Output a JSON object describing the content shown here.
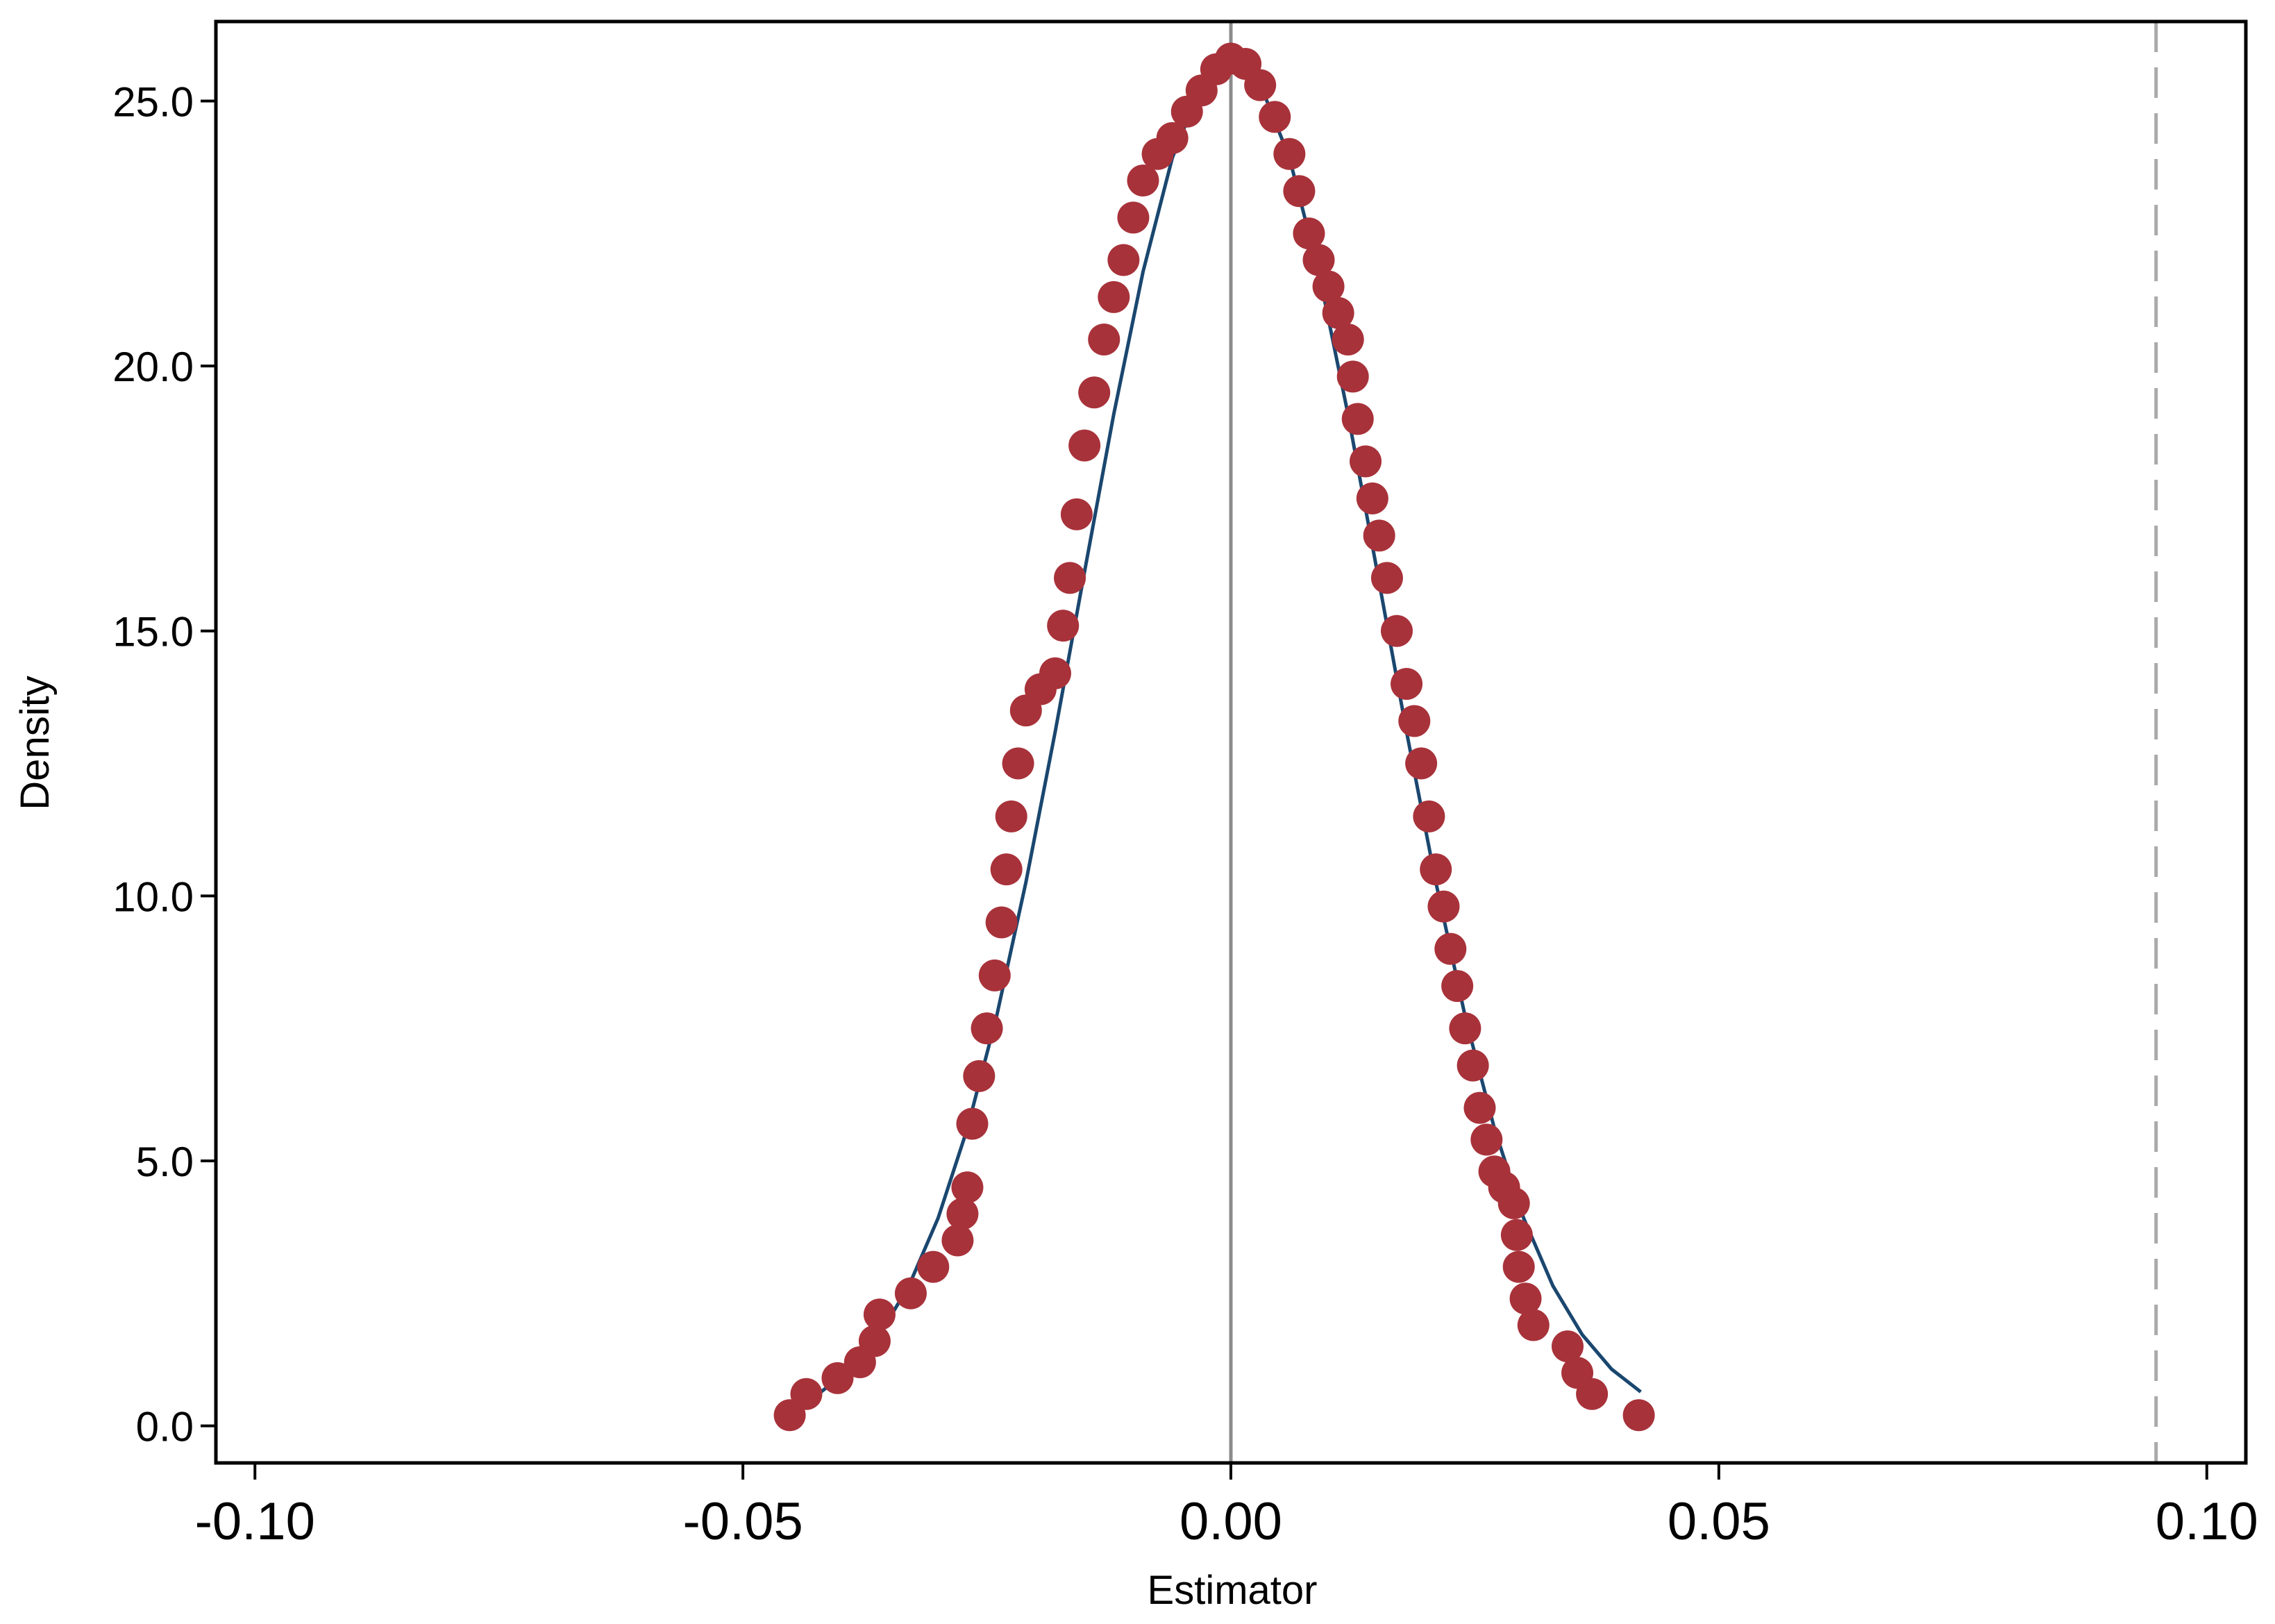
{
  "chart_data": {
    "type": "scatter",
    "x_label": "Estimator",
    "y_label": "Density",
    "xlim": [
      -0.104,
      0.104
    ],
    "ylim": [
      -0.7,
      26.5
    ],
    "xticks": [
      {
        "value": -0.1,
        "label": "-0.10"
      },
      {
        "value": -0.05,
        "label": "-0.05"
      },
      {
        "value": 0,
        "label": "0.00"
      },
      {
        "value": 0.05,
        "label": "0.05"
      },
      {
        "value": 0.1,
        "label": "0.10"
      }
    ],
    "yticks": [
      {
        "value": 0,
        "label": "0.0"
      },
      {
        "value": 5,
        "label": "5.0"
      },
      {
        "value": 10,
        "label": "10.0"
      },
      {
        "value": 15,
        "label": "15.0"
      },
      {
        "value": 20,
        "label": "20.0"
      },
      {
        "value": 25,
        "label": "25.0"
      }
    ],
    "reference_lines": [
      {
        "x": 0,
        "color": "#8c8c8c",
        "dashed": false
      },
      {
        "x": 0.0948,
        "color": "#aaaaaa",
        "dashed": true
      }
    ],
    "series": [
      {
        "type": "line",
        "color": "#1a476f",
        "x": [
          -0.045,
          -0.042,
          -0.039,
          -0.036,
          -0.033,
          -0.03,
          -0.027,
          -0.024,
          -0.021,
          -0.018,
          -0.015,
          -0.012,
          -0.009,
          -0.006,
          -0.003,
          0,
          0.003,
          0.006,
          0.009,
          0.012,
          0.015,
          0.018,
          0.021,
          0.024,
          0.027,
          0.03,
          0.033,
          0.036,
          0.039,
          0.042
        ],
        "values": [
          0.37,
          0.64,
          1.07,
          1.72,
          2.64,
          3.92,
          5.61,
          7.73,
          10.26,
          13.1,
          16.11,
          19.09,
          21.78,
          23.93,
          25.32,
          25.8,
          25.32,
          23.93,
          21.78,
          19.09,
          16.11,
          13.1,
          10.26,
          7.73,
          5.61,
          3.92,
          2.64,
          1.72,
          1.07,
          0.64
        ]
      },
      {
        "type": "scatter",
        "color": "#a8323a",
        "x": [
          -0.0452,
          -0.0435,
          -0.0403,
          -0.038,
          -0.0365,
          -0.036,
          -0.0328,
          -0.0305,
          -0.028,
          -0.0275,
          -0.027,
          -0.0265,
          -0.0258,
          -0.025,
          -0.0242,
          -0.0235,
          -0.023,
          -0.0225,
          -0.0218,
          -0.021,
          -0.0195,
          -0.018,
          -0.0172,
          -0.0165,
          -0.0158,
          -0.015,
          -0.014,
          -0.013,
          -0.012,
          -0.011,
          -0.01,
          -0.009,
          -0.0075,
          -0.006,
          -0.0045,
          -0.003,
          -0.0015,
          0,
          0.0015,
          0.003,
          0.0045,
          0.006,
          0.007,
          0.008,
          0.009,
          0.01,
          0.011,
          0.012,
          0.0125,
          0.013,
          0.0138,
          0.0145,
          0.0152,
          0.016,
          0.017,
          0.018,
          0.0188,
          0.0195,
          0.0203,
          0.021,
          0.0218,
          0.0225,
          0.0232,
          0.024,
          0.0248,
          0.0255,
          0.0262,
          0.027,
          0.028,
          0.029,
          0.0293,
          0.0295,
          0.0302,
          0.031,
          0.0345,
          0.0355,
          0.037,
          0.0418
        ],
        "values": [
          0.2,
          0.6,
          0.9,
          1.2,
          1.6,
          2.1,
          2.5,
          3.0,
          3.5,
          4.0,
          4.5,
          5.7,
          6.6,
          7.5,
          8.5,
          9.5,
          10.5,
          11.5,
          12.5,
          13.5,
          13.9,
          14.2,
          15.1,
          16.0,
          17.2,
          18.5,
          19.5,
          20.5,
          21.3,
          22.0,
          22.8,
          23.5,
          24.0,
          24.3,
          24.8,
          25.2,
          25.6,
          25.8,
          25.7,
          25.3,
          24.7,
          24.0,
          23.3,
          22.5,
          22.0,
          21.5,
          21.0,
          20.5,
          19.8,
          19.0,
          18.2,
          17.5,
          16.8,
          16.0,
          15.0,
          14.0,
          13.3,
          12.5,
          11.5,
          10.5,
          9.8,
          9.0,
          8.3,
          7.5,
          6.8,
          6.0,
          5.4,
          4.8,
          4.5,
          4.2,
          3.6,
          3.0,
          2.4,
          1.9,
          1.5,
          1.0,
          0.6,
          0.2
        ]
      }
    ]
  }
}
